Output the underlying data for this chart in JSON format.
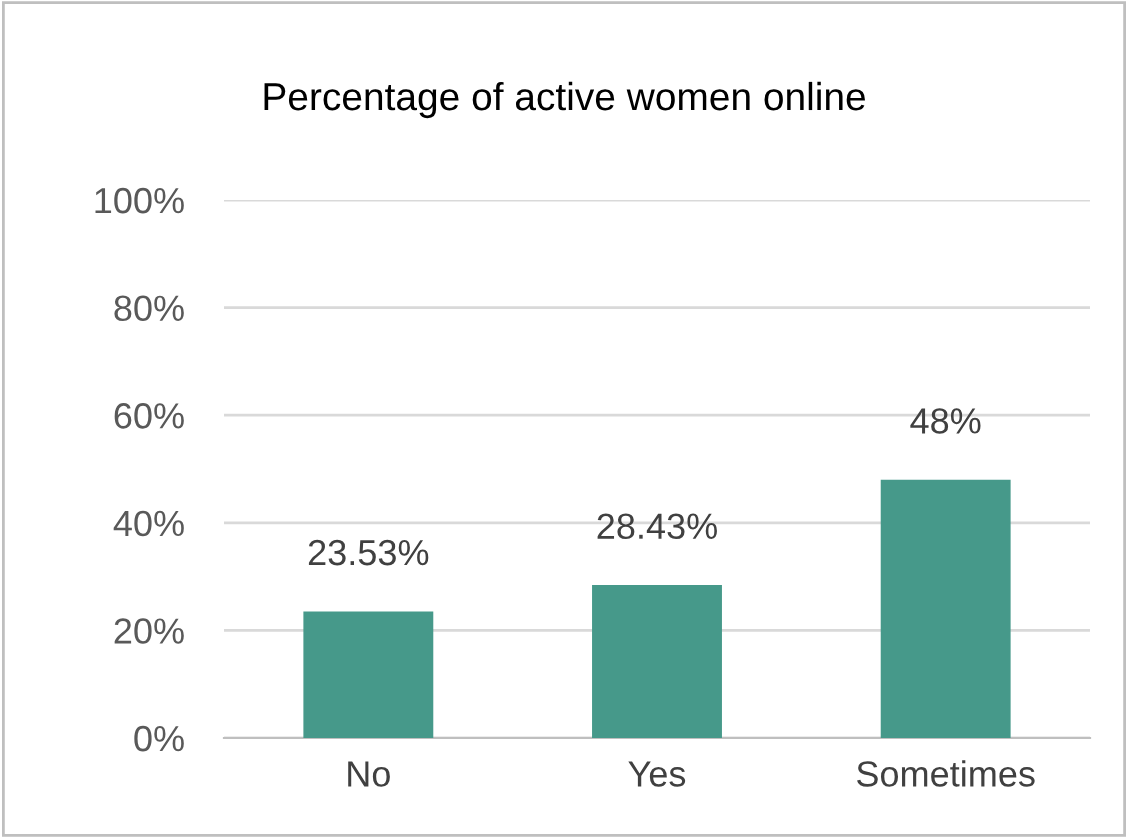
{
  "chart_data": {
    "type": "bar",
    "title": "Percentage of active women online",
    "categories": [
      "No",
      "Yes",
      "Sometimes"
    ],
    "values": [
      23.53,
      28.43,
      48
    ],
    "value_labels": [
      "23.53%",
      "28.43%",
      "48%"
    ],
    "color": "#46998a",
    "ylim": [
      0,
      100
    ],
    "yticks": [
      {
        "value": 0,
        "label": "0%"
      },
      {
        "value": 20,
        "label": "20%"
      },
      {
        "value": 40,
        "label": "40%"
      },
      {
        "value": 60,
        "label": "60%"
      },
      {
        "value": 80,
        "label": "80%"
      },
      {
        "value": 100,
        "label": "100%"
      }
    ],
    "grid": "y",
    "legend": false
  }
}
